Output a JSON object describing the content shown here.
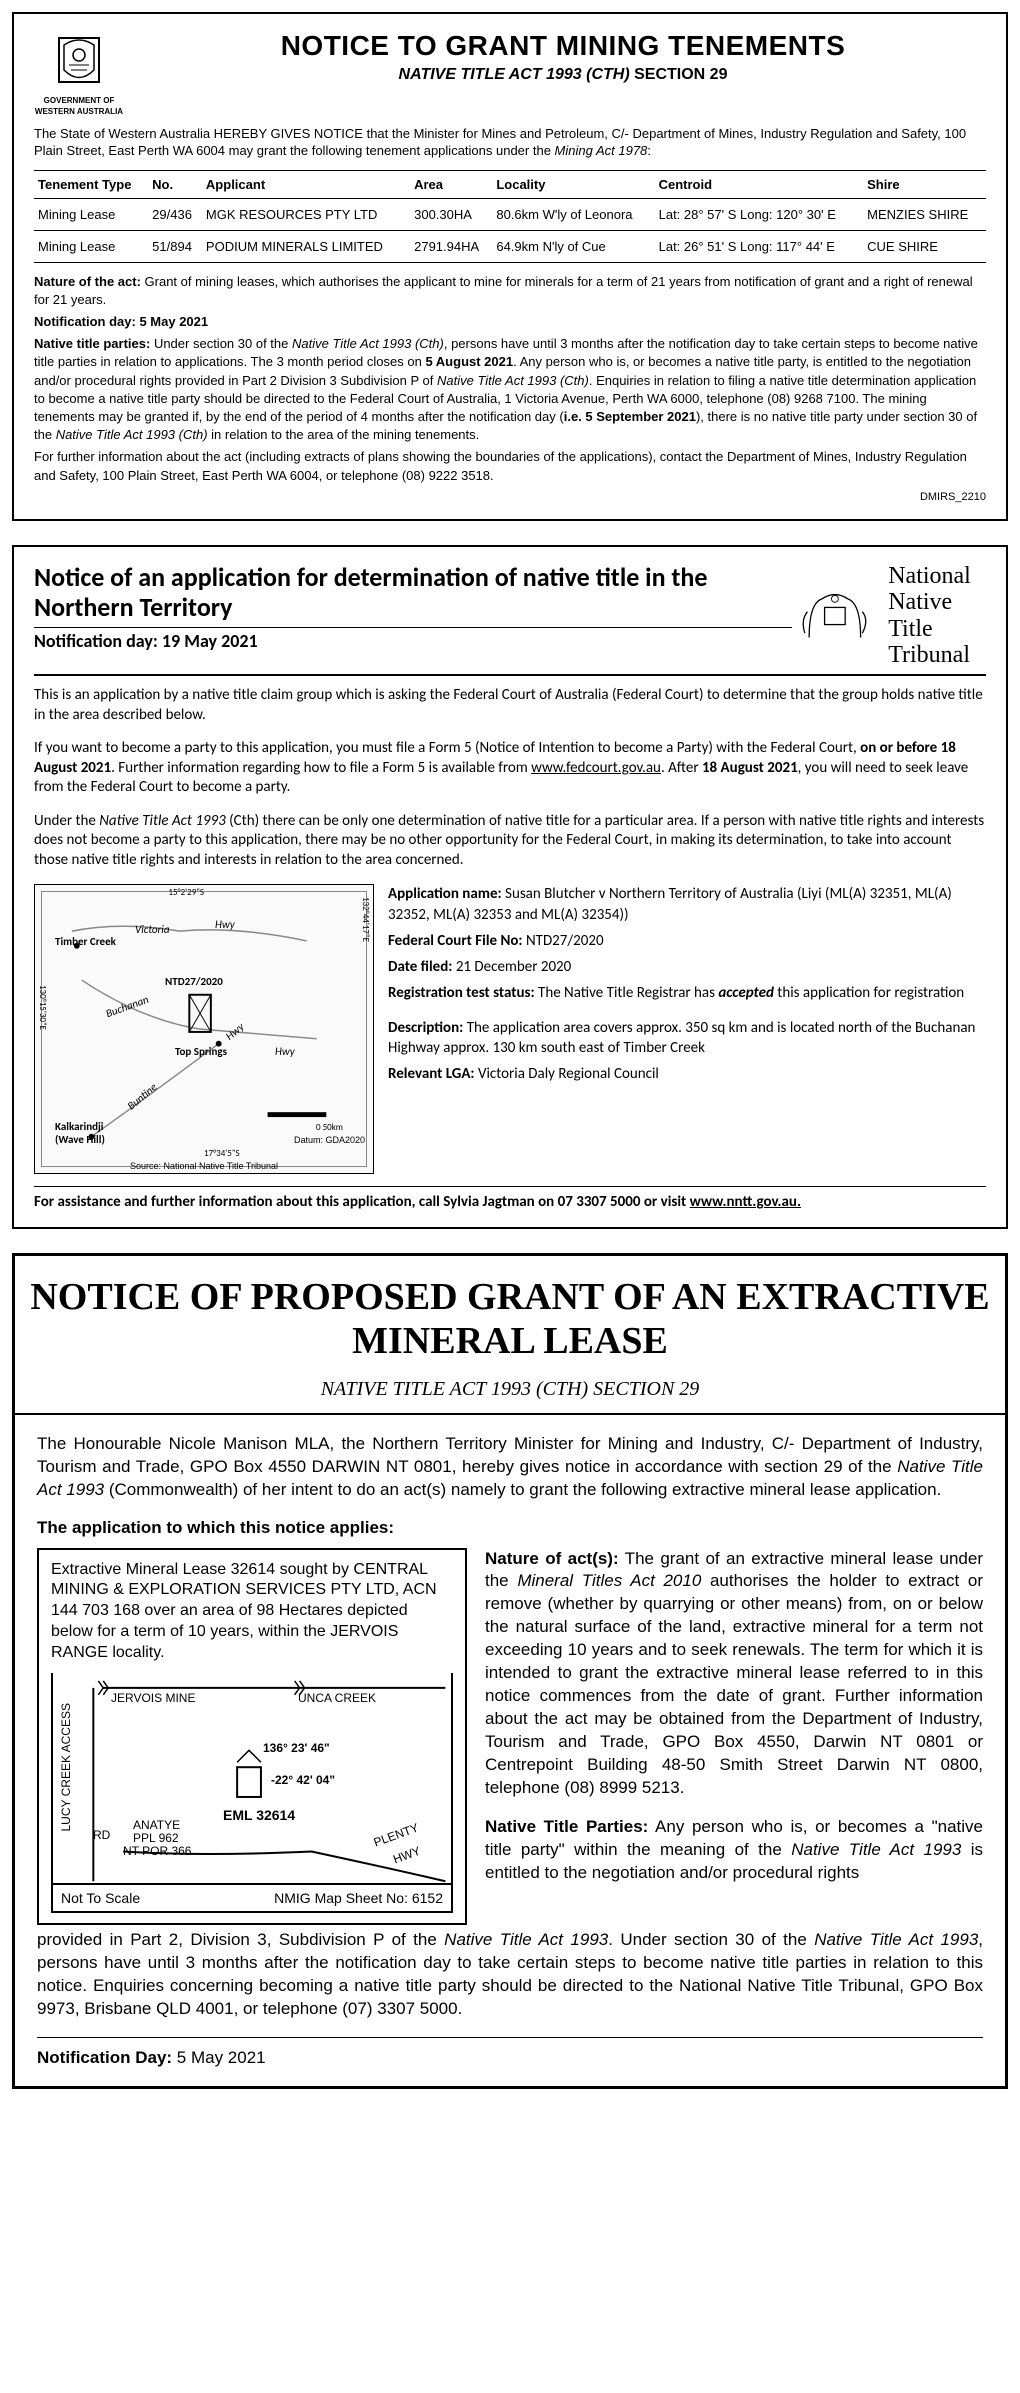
{
  "notice1": {
    "logo_text1": "GOVERNMENT OF",
    "logo_text2": "WESTERN AUSTRALIA",
    "title": "NOTICE TO GRANT MINING TENEMENTS",
    "subtitle_italic": "NATIVE TITLE ACT 1993 (CTH)",
    "subtitle_plain": " SECTION 29",
    "intro": "The State of Western Australia HEREBY GIVES NOTICE that the Minister for Mines and Petroleum, C/- Department of Mines, Industry Regulation and Safety, 100 Plain Street, East Perth WA 6004 may grant the following tenement applications under the ",
    "intro_act": "Mining Act 1978",
    "intro_end": ":",
    "columns": [
      "Tenement Type",
      "No.",
      "Applicant",
      "Area",
      "Locality",
      "Centroid",
      "Shire"
    ],
    "rows": [
      [
        "Mining Lease",
        "29/436",
        "MGK RESOURCES PTY LTD",
        "300.30HA",
        "80.6km W'ly of Leonora",
        "Lat: 28° 57'  S  Long: 120° 30'  E",
        "MENZIES SHIRE"
      ],
      [
        "Mining Lease",
        "51/894",
        "PODIUM MINERALS LIMITED",
        "2791.94HA",
        "64.9km N'ly of Cue",
        "Lat: 26° 51'  S  Long: 117° 44'  E",
        "CUE SHIRE"
      ]
    ],
    "nature_label": "Nature of the act:",
    "nature_text": " Grant of mining leases, which authorises the applicant to mine for minerals for a term of 21 years from notification of grant and a right of renewal for 21 years.",
    "notif_label": "Notification day: 5 May 2021",
    "parties_label": "Native title parties:",
    "parties_text1": " Under section 30 of the ",
    "parties_act1": "Native Title Act 1993 (Cth)",
    "parties_text2": ", persons have until 3 months after the notification day to take certain steps to become native title parties in relation to applications. The 3 month period closes on ",
    "parties_date": "5 August 2021",
    "parties_text3": ". Any person who is, or becomes a native title party, is entitled to the negotiation and/or procedural rights provided in Part 2 Division 3 Subdivision P of ",
    "parties_act2": "Native Title Act 1993 (Cth)",
    "parties_text4": ". Enquiries in relation to filing a native title determination application to become a native title party should be directed to the Federal Court of Australia, 1 Victoria Avenue, Perth WA 6000, telephone (08) 9268 7100. The mining tenements may be granted if, by the end of the period of 4 months after the notification day (",
    "parties_date2_label": "i.e. 5 September 2021",
    "parties_text5": "), there is no native title party under section 30 of the ",
    "parties_act3": "Native Title Act 1993 (Cth)",
    "parties_text6": " in relation to the area of the mining tenements.",
    "further": "For further information about the act (including extracts of plans showing the boundaries of the applications), contact the Department of Mines, Industry Regulation and Safety, 100 Plain Street, East Perth WA 6004, or telephone (08) 9222 3518.",
    "ref": "DMIRS_2210"
  },
  "notice2": {
    "title": "Notice of an application for determination of native title in the Northern Territory",
    "subtitle": "Notification day: 19 May 2021",
    "nntt_line1": "National",
    "nntt_line2": "Native Title",
    "nntt_line3": "Tribunal",
    "p1": "This is an application by a native title claim group which is asking the Federal Court of Australia (Federal Court) to determine that the group holds native title in the area described below.",
    "p2a": "If you want to become a party to this application, you must file a Form 5 (Notice of Intention to become a Party) with the Federal Court, ",
    "p2b": "on or before 18 August 2021",
    "p2c": ". Further information regarding how to file a Form 5 is available from ",
    "p2link": "www.fedcourt.gov.au",
    "p2d": ". After ",
    "p2e": "18 August 2021",
    "p2f": ", you will need to seek leave from the Federal Court to become a party.",
    "p3a": "Under the ",
    "p3act": "Native Title Act 1993",
    "p3b": " (Cth) there can be only one determination of native title for a particular area. If a person with native title rights and interests does not become a party to this application, there may be no other opportunity for the Federal Court, in making its determination, to take into account those native title rights and interests in relation to the area concerned.",
    "map": {
      "coord1": "15°2'29\"S",
      "coord2": "130°14'1\"E",
      "coord3": "132°44'17\"E",
      "coord4": "130°15'30\"E",
      "coord5": "17°34'5\"S",
      "timber_creek": "Timber Creek",
      "victoria": "Victoria",
      "hwy": "Hwy",
      "ntd": "NTD27/2020",
      "buchanan": "Buchanan",
      "top_springs": "Top Springs",
      "kalkarindji": "Kalkarindji",
      "wave_hill": "(Wave Hill)",
      "buntine": "Buntine",
      "scale": "0            50km",
      "datum": "Datum: GDA2020",
      "source": "Source: National Native Title Tribunal"
    },
    "details": {
      "app_name_lbl": "Application name:",
      "app_name": " Susan Blutcher v Northern Territory of Australia (Liyi (ML(A) 32351, ML(A) 32352, ML(A) 32353 and ML(A) 32354))",
      "file_lbl": "Federal Court File No:",
      "file": " NTD27/2020",
      "date_lbl": "Date filed:",
      "date": " 21 December 2020",
      "reg_lbl": "Registration test status:",
      "reg_text1": " The Native Title Registrar has ",
      "reg_status": "accepted",
      "reg_text2": " this application for registration",
      "desc_lbl": "Description:",
      "desc": " The application area covers approx. 350 sq km and is located north of the Buchanan Highway approx. 130 km south east of Timber Creek",
      "lga_lbl": "Relevant LGA:",
      "lga": " Victoria Daly Regional Council"
    },
    "footer_text": "For assistance and further information about this application, call Sylvia Jagtman on 07 3307 5000 or visit ",
    "footer_link": "www.nntt.gov.au."
  },
  "notice3": {
    "title": "NOTICE OF PROPOSED GRANT OF AN EXTRACTIVE MINERAL LEASE",
    "subtitle": "NATIVE TITLE ACT 1993 (CTH) SECTION 29",
    "p1a": "The Honourable Nicole Manison MLA, the Northern Territory Minister for Mining and Industry, C/- Department of Industry, Tourism and Trade, GPO Box 4550 DARWIN NT 0801, hereby gives notice in accordance with section 29 of the ",
    "p1act": "Native Title Act 1993",
    "p1b": " (Commonwealth) of her intent to do an act(s) namely to grant the following extractive mineral lease application.",
    "sechead": "The application to which this notice applies:",
    "box_text": "Extractive Mineral Lease 32614 sought by CENTRAL MINING & EXPLORATION SERVICES PTY LTD, ACN 144 703 168 over an area of 98 Hectares depicted below for a term of 10 years, within the JERVOIS RANGE locality.",
    "map": {
      "jervois": "JERVOIS MINE",
      "unca": "UNCA CREEK",
      "lucy": "LUCY CREEK ACCESS",
      "rd": "RD",
      "lon": "136° 23' 46\"",
      "lat": "-22° 42' 04\"",
      "eml": "EML 32614",
      "anatye": "ANATYE",
      "ppl": "PPL 962",
      "ntpor": "NT POR 366",
      "plenty": "PLENTY",
      "hwy": "HWY",
      "notscale": "Not To Scale",
      "sheet": "NMIG Map Sheet No: 6152"
    },
    "nature_lbl": "Nature of act(s):",
    "nature1": " The grant of an extractive mineral lease under the ",
    "nature_act": "Mineral Titles Act 2010",
    "nature2": " authorises the holder to extract or remove (whether by quarrying or other means) from, on or below the natural surface of the land, extractive mineral for a term not exceeding 10 years and to seek renewals.  The term for which it is intended to grant the extractive mineral lease referred to in this notice commences from the date of grant.  Further information about the act may be obtained from the Department of Industry, Tourism and Trade, GPO Box 4550, Darwin NT 0801 or Centrepoint Building 48-50 Smith Street Darwin NT 0800, telephone (08) 8999 5213.",
    "ntp_lbl": "Native Title Parties:",
    "ntp1": " Any person who is, or becomes a \"native title party\" within the meaning of the ",
    "ntp_act1": "Native Title Act 1993",
    "ntp2": " is entitled to the negotiation and/or procedural rights ",
    "full1": "provided in Part 2, Division 3, Subdivision P of the ",
    "full_act1": "Native Title Act 1993",
    "full2": ".  Under section 30 of the ",
    "full_act2": "Native Title Act 1993",
    "full3": ", persons have until 3 months after the notification day to take certain steps to become native title parties in relation to this notice.  Enquiries concerning becoming a native title party should be directed to the National Native Title Tribunal, GPO Box 9973, Brisbane QLD 4001, or telephone (07) 3307 5000.",
    "notday_lbl": "Notification Day:",
    "notday": " 5 May 2021"
  }
}
